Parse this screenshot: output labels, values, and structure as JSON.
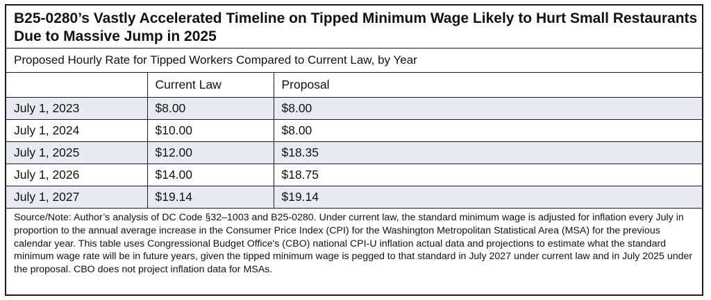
{
  "title": "B25-0280’s Vastly Accelerated Timeline on Tipped Minimum Wage Likely to Hurt Small Restaurants Due to Massive Jump in 2025",
  "subtitle": "Proposed Hourly Rate for Tipped Workers Compared to Current Law, by Year",
  "table": {
    "headers": [
      "",
      "Current Law",
      "Proposal"
    ],
    "rows": [
      {
        "date": "July 1, 2023",
        "current_law": "$8.00",
        "proposal": "$8.00"
      },
      {
        "date": "July 1, 2024",
        "current_law": "$10.00",
        "proposal": "$8.00"
      },
      {
        "date": "July 1, 2025",
        "current_law": "$12.00",
        "proposal": "$18.35"
      },
      {
        "date": "July 1, 2026",
        "current_law": "$14.00",
        "proposal": "$18.75"
      },
      {
        "date": "July 1, 2027",
        "current_law": "$19.14",
        "proposal": "$19.14"
      }
    ]
  },
  "note": "Source/Note: Author’s analysis of DC Code §32–1003 and B25-0280. Under current law, the standard minimum wage is adjusted for inflation every July in proportion to the annual average increase in the Consumer Price Index (CPI) for the Washington Metropolitan Statistical Area (MSA) for the previous calendar year. This table uses Congressional Budget Office's (CBO) national CPI-U inflation actual data and projections to estimate what the standard minimum wage rate will be in future years, given the tipped minimum wage is pegged to that standard in July 2027 under current law and in July 2025 under the proposal. CBO does not project inflation data for MSAs.",
  "colors": {
    "border": "#1a1a1a",
    "shaded_row": "#e9ebf3",
    "text": "#111111"
  }
}
